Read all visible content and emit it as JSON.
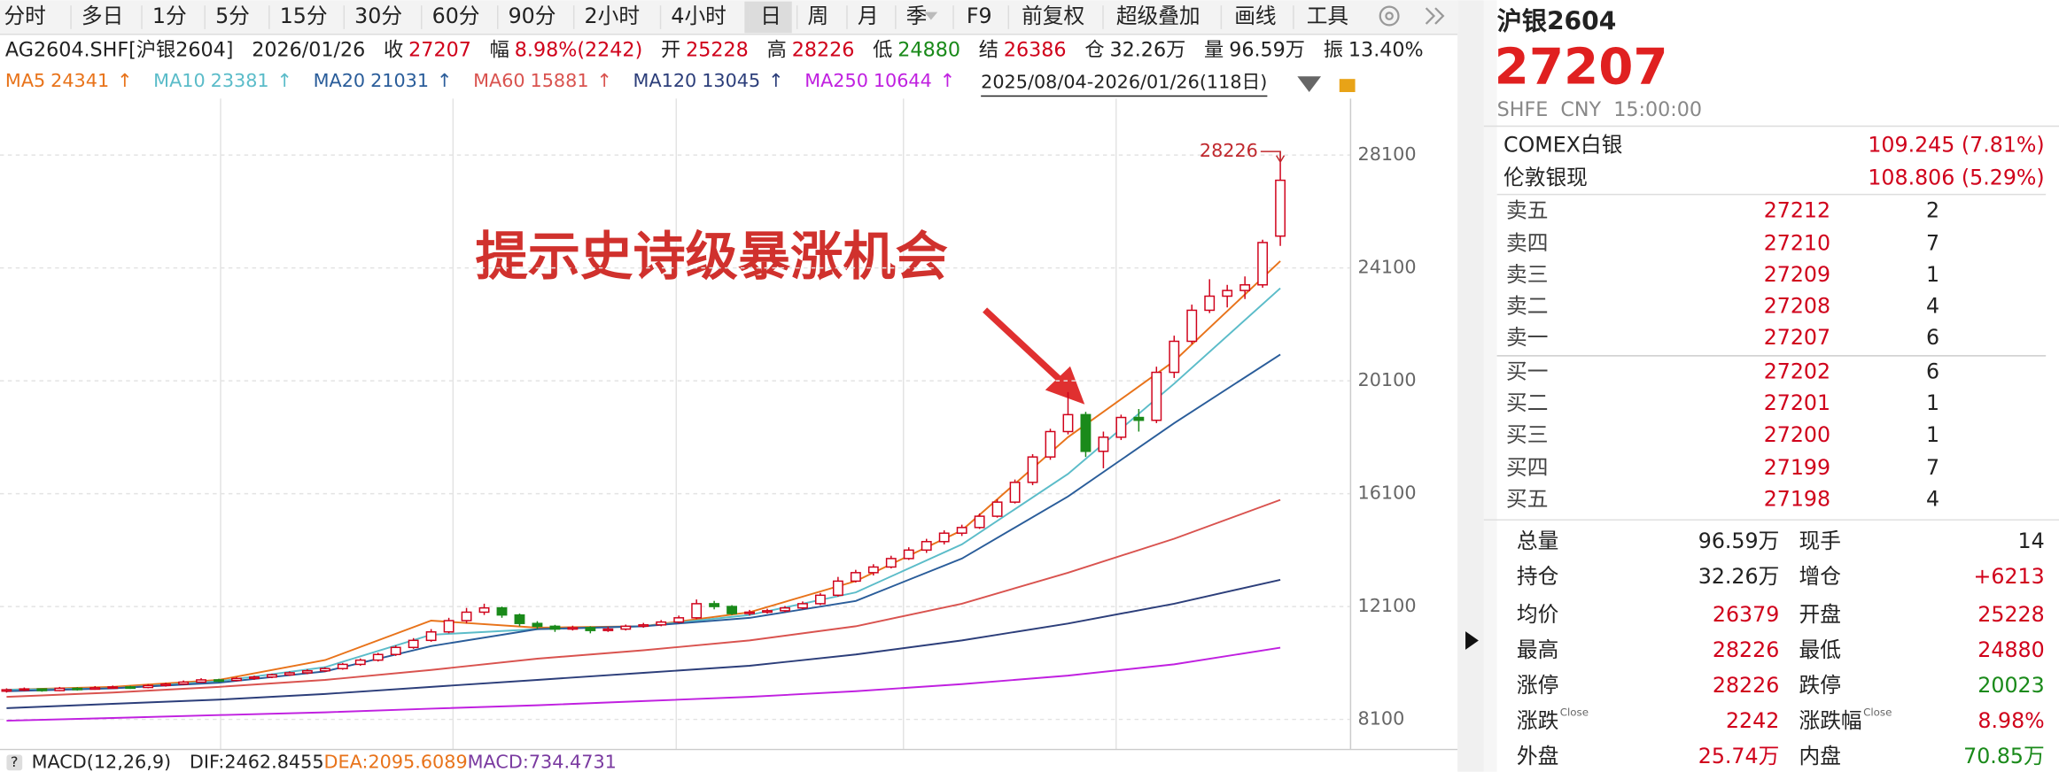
{
  "toolbar": {
    "periods": [
      "分时",
      "多日",
      "1分",
      "5分",
      "15分",
      "30分",
      "60分",
      "90分",
      "2小时",
      "4小时",
      "日",
      "周",
      "月",
      "季"
    ],
    "tools": [
      "F9",
      "前复权",
      "超级叠加",
      "画线",
      "工具"
    ]
  },
  "info": {
    "code": "AG2604.SHF[沪银2604]",
    "date": "2026/01/26",
    "items": [
      {
        "label": "收",
        "value": 27207,
        "color": "#d0021b"
      },
      {
        "label": "幅",
        "value": "8.98%(2242)",
        "color": "#d0021b"
      },
      {
        "label": "开",
        "value": 25228,
        "color": "#d0021b"
      },
      {
        "label": "高",
        "value": 28226,
        "color": "#d0021b"
      },
      {
        "label": "低",
        "value": 24880,
        "color": "#1a8a1a"
      },
      {
        "label": "结",
        "value": 26386,
        "color": "#d0021b"
      },
      {
        "label": "仓",
        "value": "32.26万",
        "color": "#222"
      },
      {
        "label": "量",
        "value": "96.59万",
        "color": "#222"
      },
      {
        "label": "振",
        "value": "13.40%",
        "color": "#222"
      }
    ]
  },
  "ma_legend": {
    "items": [
      {
        "name": "MA5",
        "value": 24341,
        "arrow": "↑",
        "color": "#e8731a"
      },
      {
        "name": "MA10",
        "value": 23381,
        "arrow": "↑",
        "color": "#5bbcc9"
      },
      {
        "name": "MA20",
        "value": 21031,
        "arrow": "↑",
        "color": "#2a5d9a"
      },
      {
        "name": "MA60",
        "value": 15881,
        "arrow": "↑",
        "color": "#d9534f"
      },
      {
        "name": "MA120",
        "value": 13045,
        "arrow": "↑",
        "color": "#2c3e7a"
      },
      {
        "name": "MA250",
        "value": 10644,
        "arrow": "↑",
        "color": "#c020e0"
      }
    ],
    "range": "2025/08/04-2026/01/26(118日)"
  },
  "chart": {
    "ylim": [
      7080,
      30100
    ],
    "yticks": [
      28100,
      24100,
      20100,
      16100,
      12100,
      8100
    ],
    "up_color": "#d0021b",
    "down_color": "#1a8a1a",
    "candles": [
      [
        9100,
        9200,
        9050,
        9150
      ],
      [
        9150,
        9230,
        9100,
        9180
      ],
      [
        9180,
        9200,
        9080,
        9120
      ],
      [
        9120,
        9250,
        9100,
        9200
      ],
      [
        9200,
        9240,
        9120,
        9170
      ],
      [
        9170,
        9280,
        9150,
        9220
      ],
      [
        9220,
        9300,
        9180,
        9250
      ],
      [
        9250,
        9290,
        9180,
        9230
      ],
      [
        9230,
        9350,
        9200,
        9300
      ],
      [
        9300,
        9400,
        9260,
        9350
      ],
      [
        9350,
        9480,
        9320,
        9420
      ],
      [
        9420,
        9560,
        9400,
        9500
      ],
      [
        9500,
        9540,
        9420,
        9480
      ],
      [
        9480,
        9600,
        9450,
        9550
      ],
      [
        9550,
        9650,
        9500,
        9600
      ],
      [
        9600,
        9720,
        9560,
        9680
      ],
      [
        9680,
        9800,
        9640,
        9750
      ],
      [
        9750,
        9880,
        9700,
        9820
      ],
      [
        9820,
        9950,
        9780,
        9900
      ],
      [
        9900,
        10100,
        9860,
        10050
      ],
      [
        10050,
        10260,
        10000,
        10200
      ],
      [
        10200,
        10460,
        10150,
        10400
      ],
      [
        10400,
        10720,
        10350,
        10650
      ],
      [
        10650,
        10980,
        10600,
        10900
      ],
      [
        10900,
        11300,
        10850,
        11200
      ],
      [
        11200,
        11700,
        11150,
        11600
      ],
      [
        11600,
        12050,
        11500,
        11900
      ],
      [
        11900,
        12200,
        11800,
        12050
      ],
      [
        12050,
        12100,
        11700,
        11800
      ],
      [
        11800,
        11850,
        11400,
        11500
      ],
      [
        11500,
        11580,
        11300,
        11400
      ],
      [
        11400,
        11450,
        11200,
        11300
      ],
      [
        11300,
        11420,
        11250,
        11350
      ],
      [
        11350,
        11400,
        11150,
        11250
      ],
      [
        11250,
        11380,
        11200,
        11300
      ],
      [
        11300,
        11460,
        11250,
        11400
      ],
      [
        11400,
        11520,
        11350,
        11450
      ],
      [
        11450,
        11620,
        11400,
        11550
      ],
      [
        11550,
        11780,
        11500,
        11700
      ],
      [
        11700,
        12350,
        11650,
        12200
      ],
      [
        12200,
        12300,
        12000,
        12100
      ],
      [
        12100,
        12150,
        11800,
        11850
      ],
      [
        11850,
        11980,
        11780,
        11900
      ],
      [
        11900,
        12020,
        11850,
        11950
      ],
      [
        11950,
        12120,
        11900,
        12050
      ],
      [
        12050,
        12280,
        12000,
        12200
      ],
      [
        12200,
        12580,
        12150,
        12500
      ],
      [
        12500,
        13150,
        12450,
        13000
      ],
      [
        13000,
        13400,
        12950,
        13300
      ],
      [
        13300,
        13600,
        13200,
        13500
      ],
      [
        13500,
        13900,
        13450,
        13800
      ],
      [
        13800,
        14200,
        13750,
        14100
      ],
      [
        14100,
        14500,
        14000,
        14400
      ],
      [
        14400,
        14800,
        14300,
        14700
      ],
      [
        14700,
        15000,
        14600,
        14900
      ],
      [
        14900,
        15400,
        14850,
        15300
      ],
      [
        15300,
        15900,
        15250,
        15800
      ],
      [
        15800,
        16600,
        15750,
        16500
      ],
      [
        16500,
        17500,
        16400,
        17400
      ],
      [
        17400,
        18400,
        17300,
        18300
      ],
      [
        18300,
        19700,
        18200,
        18900
      ],
      [
        18900,
        19000,
        17400,
        17600
      ],
      [
        17600,
        18300,
        17000,
        18100
      ],
      [
        18100,
        18900,
        18000,
        18800
      ],
      [
        18800,
        19100,
        18300,
        18700
      ],
      [
        18700,
        20600,
        18600,
        20400
      ],
      [
        20400,
        21700,
        20200,
        21500
      ],
      [
        21500,
        22800,
        21400,
        22600
      ],
      [
        22600,
        23700,
        22500,
        23100
      ],
      [
        23100,
        23500,
        22700,
        23300
      ],
      [
        23300,
        23800,
        23000,
        23500
      ],
      [
        23500,
        25100,
        23400,
        25000
      ],
      [
        25228,
        28226,
        24880,
        27207
      ]
    ],
    "ma_lines": [
      {
        "color": "#e8731a",
        "values": [
          9150,
          9250,
          9500,
          10200,
          11600,
          11350,
          11400,
          11900,
          13000,
          14800,
          18100,
          20800,
          24341
        ]
      },
      {
        "color": "#5bbcc9",
        "values": [
          9150,
          9200,
          9450,
          9950,
          11100,
          11300,
          11400,
          11800,
          12600,
          14300,
          16800,
          20000,
          23381
        ]
      },
      {
        "color": "#2a5d9a",
        "values": [
          9100,
          9200,
          9400,
          9800,
          10700,
          11300,
          11400,
          11700,
          12300,
          13800,
          16000,
          18600,
          21031
        ]
      },
      {
        "color": "#d9534f",
        "values": [
          8900,
          9050,
          9250,
          9500,
          9850,
          10250,
          10550,
          10900,
          11400,
          12200,
          13300,
          14500,
          15881
        ]
      },
      {
        "color": "#2c3e7a",
        "values": [
          8500,
          8650,
          8800,
          9000,
          9250,
          9500,
          9750,
          10000,
          10400,
          10900,
          11500,
          12200,
          13045
        ]
      },
      {
        "color": "#c020e0",
        "values": [
          8050,
          8150,
          8250,
          8350,
          8480,
          8600,
          8750,
          8900,
          9100,
          9350,
          9650,
          10050,
          10644
        ]
      }
    ],
    "annotation": "提示史诗级暴涨机会"
  },
  "macd": {
    "title": "MACD(12,26,9)",
    "items": [
      {
        "text": "DIF:2462.8455",
        "color": "#222"
      },
      {
        "text": "DEA:2095.6089",
        "color": "#e8731a"
      },
      {
        "text": "MACD:734.4731",
        "color": "#7a3aa0"
      }
    ]
  },
  "quote": {
    "name": "沪银2604",
    "price": 27207,
    "meta": "SHFE  CNY  15:00:00",
    "refs": [
      {
        "name": "COMEX白银",
        "value": "109.245 (7.81%)"
      },
      {
        "name": "伦敦银现",
        "value": "108.806 (5.29%)"
      }
    ],
    "asks": [
      {
        "label": "卖五",
        "price": 27212,
        "qty": 2
      },
      {
        "label": "卖四",
        "price": 27210,
        "qty": 7
      },
      {
        "label": "卖三",
        "price": 27209,
        "qty": 1
      },
      {
        "label": "卖二",
        "price": 27208,
        "qty": 4
      },
      {
        "label": "卖一",
        "price": 27207,
        "qty": 6
      }
    ],
    "bids": [
      {
        "label": "买一",
        "price": 27202,
        "qty": 6
      },
      {
        "label": "买二",
        "price": 27201,
        "qty": 1
      },
      {
        "label": "买三",
        "price": 27200,
        "qty": 1
      },
      {
        "label": "买四",
        "price": 27199,
        "qty": 7
      },
      {
        "label": "买五",
        "price": 27198,
        "qty": 4
      }
    ],
    "stats": [
      [
        {
          "label": "总量",
          "value": "96.59万",
          "color": "#222"
        },
        {
          "label": "现手",
          "value": 14,
          "color": "#222"
        }
      ],
      [
        {
          "label": "持仓",
          "value": "32.26万",
          "color": "#222"
        },
        {
          "label": "增仓",
          "value": "+6213",
          "color": "#d0021b"
        }
      ],
      [
        {
          "label": "均价",
          "value": 26379,
          "color": "#d0021b"
        },
        {
          "label": "开盘",
          "value": 25228,
          "color": "#d0021b"
        }
      ],
      [
        {
          "label": "最高",
          "value": 28226,
          "color": "#d0021b"
        },
        {
          "label": "最低",
          "value": 24880,
          "color": "#d0021b"
        }
      ],
      [
        {
          "label": "涨停",
          "value": 28226,
          "color": "#d0021b"
        },
        {
          "label": "跌停",
          "value": 20023,
          "color": "#1a8a1a"
        }
      ],
      [
        {
          "label": "涨跌",
          "sup": "Close",
          "value": 2242,
          "color": "#d0021b"
        },
        {
          "label": "涨跌幅",
          "sup": "Close",
          "value": "8.98%",
          "color": "#d0021b"
        }
      ],
      [
        {
          "label": "外盘",
          "value": "25.74万",
          "color": "#d0021b"
        },
        {
          "label": "内盘",
          "value": "70.85万",
          "color": "#1a8a1a"
        }
      ]
    ]
  }
}
